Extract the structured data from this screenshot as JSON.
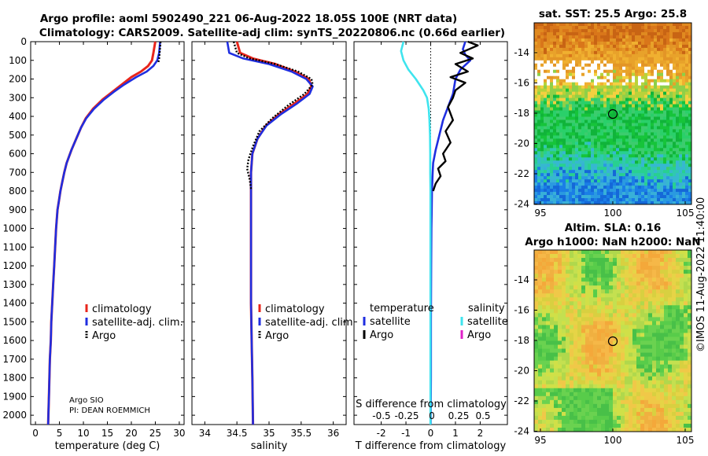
{
  "header": {
    "title_line1": "Argo profile: aoml 5902490_221 06-Aug-2022 18.05S 100E (NRT data)",
    "title_line2": "Climatology: CARS2009. Satellite-adj clim: synTS_20220806.nc (0.66d earlier)"
  },
  "colors": {
    "clim": "#e8251b",
    "sat": "#1f2ee0",
    "argo": "#000000",
    "cyan": "#3fe4ee",
    "magenta": "#e020c8"
  },
  "chart_data": [
    {
      "type": "line",
      "id": "temperature",
      "xlabel": "temperature (deg C)",
      "ylabel": "depth",
      "xlim": [
        -1,
        31
      ],
      "ylim": [
        2050,
        0
      ],
      "xticks": [
        0,
        5,
        10,
        15,
        20,
        25,
        30
      ],
      "yticks": [
        0,
        100,
        200,
        300,
        400,
        500,
        600,
        700,
        800,
        900,
        1000,
        1100,
        1200,
        1300,
        1400,
        1500,
        1600,
        1700,
        1800,
        1900,
        2000
      ],
      "series": [
        {
          "name": "climatology",
          "style": "clim",
          "x": [
            25.0,
            24.6,
            24.3,
            23.5,
            22.0,
            20.0,
            18.0,
            16.0,
            14.0,
            12.0,
            10.5,
            9.5,
            8.5,
            7.5,
            6.5,
            6.0,
            5.6,
            5.2,
            4.9,
            4.6,
            4.3,
            4.1,
            3.9,
            3.7,
            3.5,
            3.3,
            3.2,
            3.0,
            2.9,
            2.8,
            2.7,
            2.65
          ],
          "y": [
            0,
            60,
            100,
            130,
            160,
            190,
            230,
            270,
            310,
            360,
            410,
            460,
            520,
            580,
            650,
            700,
            750,
            800,
            850,
            900,
            1000,
            1100,
            1200,
            1300,
            1400,
            1500,
            1600,
            1700,
            1800,
            1900,
            2000,
            2050
          ]
        },
        {
          "name": "satellite-adj. clim.",
          "style": "sat",
          "x": [
            26.0,
            25.8,
            25.4,
            24.6,
            23.2,
            21.0,
            18.5,
            16.3,
            14.3,
            12.2,
            10.6,
            9.5,
            8.5,
            7.5,
            6.5,
            6.0,
            5.6,
            5.2,
            4.9,
            4.6,
            4.3,
            4.1,
            3.9,
            3.7,
            3.5,
            3.3,
            3.2,
            3.0,
            2.9,
            2.8,
            2.7,
            2.65
          ],
          "y": [
            0,
            60,
            100,
            130,
            160,
            190,
            230,
            270,
            310,
            360,
            410,
            460,
            520,
            580,
            650,
            700,
            750,
            800,
            850,
            900,
            1000,
            1100,
            1200,
            1300,
            1400,
            1500,
            1600,
            1700,
            1800,
            1900,
            2000,
            2050
          ]
        },
        {
          "name": "Argo",
          "style": "argo",
          "x": [
            26.1,
            26.0,
            25.9,
            25.8,
            25.6
          ],
          "y": [
            0,
            30,
            60,
            90,
            115
          ]
        }
      ],
      "legend": {
        "items": [
          "climatology",
          "satellite-adj. clim.",
          "Argo"
        ]
      },
      "annotations": [
        "Argo SIO",
        "PI: DEAN ROEMMICH"
      ]
    },
    {
      "type": "line",
      "id": "salinity",
      "xlabel": "salinity",
      "ylabel": "depth",
      "xlim": [
        33.8,
        36.2
      ],
      "ylim": [
        2050,
        0
      ],
      "xticks": [
        34,
        34.5,
        35,
        35.5,
        36
      ],
      "series": [
        {
          "name": "climatology",
          "style": "clim",
          "x": [
            34.5,
            34.55,
            34.75,
            35.1,
            35.4,
            35.62,
            35.66,
            35.6,
            35.4,
            35.15,
            34.95,
            34.82,
            34.74,
            34.72,
            34.72,
            34.72,
            34.72,
            34.72,
            34.72,
            34.73,
            34.74,
            34.75
          ],
          "y": [
            0,
            60,
            90,
            120,
            160,
            200,
            240,
            280,
            330,
            390,
            450,
            520,
            600,
            700,
            800,
            900,
            1000,
            1200,
            1400,
            1600,
            1800,
            2050
          ]
        },
        {
          "name": "satellite-adj. clim.",
          "style": "sat",
          "x": [
            34.35,
            34.38,
            34.6,
            35.0,
            35.35,
            35.58,
            35.68,
            35.63,
            35.44,
            35.18,
            34.96,
            34.82,
            34.74,
            34.72,
            34.72,
            34.72,
            34.72,
            34.72,
            34.72,
            34.73,
            34.74,
            34.75
          ],
          "y": [
            0,
            60,
            90,
            120,
            160,
            200,
            240,
            280,
            330,
            390,
            450,
            520,
            600,
            700,
            800,
            900,
            1000,
            1200,
            1400,
            1600,
            1800,
            2050
          ]
        },
        {
          "name": "Argo",
          "style": "argo",
          "x": [
            34.45,
            34.5,
            34.7,
            35.1,
            35.45,
            35.66,
            35.68,
            35.55,
            35.3,
            35.05,
            34.85,
            34.75,
            34.68,
            34.66,
            34.7,
            34.72
          ],
          "y": [
            0,
            60,
            90,
            120,
            160,
            200,
            230,
            280,
            340,
            410,
            480,
            560,
            630,
            680,
            740,
            790
          ]
        }
      ],
      "legend": {
        "items": [
          "climatology",
          "satellite-adj. clim.",
          "Argo"
        ]
      }
    },
    {
      "type": "line",
      "id": "difference",
      "xlabel": "T difference from climatology",
      "ylabel": "depth",
      "xlim": [
        -3.1,
        3.1
      ],
      "ylim": [
        2050,
        0
      ],
      "xticks": [
        -2,
        -1,
        0,
        1,
        2
      ],
      "secondary_axis": {
        "label": "S difference from climatology",
        "ticks": [
          "-0.5",
          "-0.25",
          "0",
          "0.25",
          "0.5"
        ]
      },
      "series": [
        {
          "name": "temperature satellite",
          "style": "sat",
          "x": [
            1.4,
            1.3,
            1.4,
            1.6,
            1.2,
            1.0,
            0.9,
            0.7,
            0.5,
            0.35,
            0.2,
            0.1,
            0.08,
            0.05,
            0.04,
            0.03,
            0.02,
            0.01,
            0.01,
            0.0
          ],
          "y": [
            0,
            40,
            70,
            100,
            150,
            200,
            280,
            350,
            420,
            500,
            580,
            650,
            700,
            800,
            900,
            1000,
            1200,
            1500,
            1800,
            2050
          ]
        },
        {
          "name": "salinity satellite",
          "style": "cyan",
          "x": [
            -1.1,
            -1.2,
            -1.1,
            -0.9,
            -0.6,
            -0.3,
            -0.15,
            -0.08,
            -0.05,
            -0.03,
            -0.02,
            -0.02,
            -0.01,
            -0.01,
            -0.01,
            -0.01,
            -0.01,
            -0.01
          ],
          "y": [
            0,
            50,
            100,
            150,
            200,
            260,
            300,
            360,
            420,
            500,
            600,
            700,
            800,
            1000,
            1300,
            1600,
            1900,
            2050
          ]
        },
        {
          "name": "temperature Argo",
          "style": "argo",
          "x": [
            1.5,
            1.9,
            1.2,
            1.7,
            1.0,
            1.5,
            0.8,
            1.4,
            1.0,
            0.9,
            0.7,
            0.9,
            0.6,
            0.8,
            0.5,
            0.6,
            0.3,
            0.4,
            0.2,
            0.1
          ],
          "y": [
            0,
            20,
            60,
            90,
            120,
            160,
            190,
            220,
            260,
            300,
            350,
            420,
            480,
            540,
            600,
            640,
            680,
            720,
            760,
            800
          ]
        }
      ],
      "legend": {
        "headers": [
          "temperature",
          "salinity"
        ],
        "items": [
          "satellite",
          "Argo",
          "satellite",
          "Argo"
        ]
      }
    },
    {
      "type": "heatmap",
      "id": "sst_map",
      "title": "sat. SST: 25.5 Argo: 25.8",
      "xticks": [
        "95",
        "100",
        "105"
      ],
      "yticks": [
        "-14",
        "-16",
        "-18",
        "-20",
        "-22",
        "-24"
      ],
      "marker": {
        "lon": 100,
        "lat": -18.05
      }
    },
    {
      "type": "heatmap",
      "id": "sla_map",
      "title_line1": "Altim. SLA: 0.16",
      "title_line2": "Argo h1000: NaN h2000: NaN",
      "xticks": [
        "95",
        "100",
        "105"
      ],
      "yticks": [
        "-14",
        "-16",
        "-18",
        "-20",
        "-22",
        "-24"
      ],
      "marker": {
        "lon": 100,
        "lat": -18.05
      }
    }
  ],
  "footer": {
    "credit": "©IMOS 11-Aug-2022 11:40:00"
  }
}
